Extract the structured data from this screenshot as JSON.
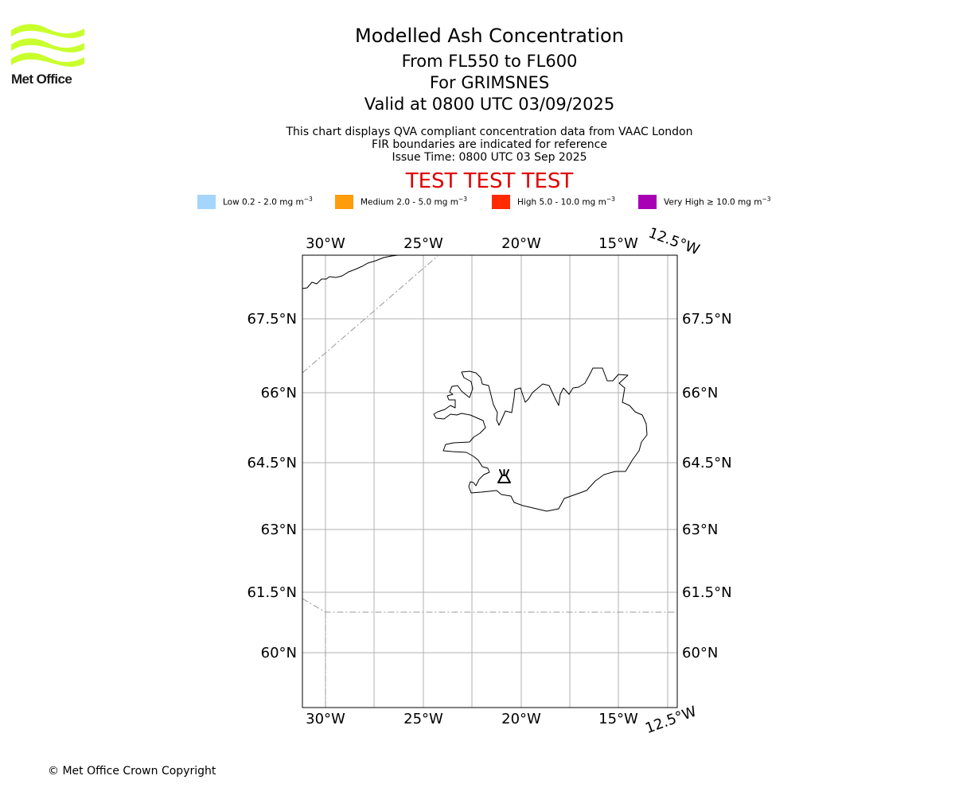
{
  "brand": {
    "logo_text": "Met Office"
  },
  "title": {
    "main": "Modelled Ash Concentration",
    "level": "From FL550 to FL600",
    "volcano": "For GRIMSNES",
    "valid": "Valid at 0800 UTC 03/09/2025"
  },
  "subtitle": {
    "line1": "This chart displays QVA compliant concentration data from VAAC London",
    "line2": "FIR boundaries are indicated for reference",
    "line3": "Issue Time: 0800 UTC 03 Sep 2025"
  },
  "test_banner": "TEST TEST TEST",
  "legend": [
    {
      "label": "Low 0.2 - 2.0 mg m",
      "exp": "−3",
      "color": "#a6d5fb"
    },
    {
      "label": "Medium 2.0 - 5.0 mg m",
      "exp": "−3",
      "color": "#ff9c0c"
    },
    {
      "label": "High 5.0 - 10.0 mg m",
      "exp": "−3",
      "color": "#ff2a00"
    },
    {
      "label": "Very High  ≥  10.0 mg m",
      "exp": "−3",
      "color": "#a800b5"
    }
  ],
  "map": {
    "lon_labels": [
      "30°W",
      "25°W",
      "20°W",
      "15°W",
      "12.5°W"
    ],
    "lat_labels": [
      "67.5°N",
      "66°N",
      "64.5°N",
      "63°N",
      "61.5°N",
      "60°N"
    ],
    "volcano_symbol": "volcano-icon"
  },
  "copyright": "© Met Office Crown Copyright"
}
